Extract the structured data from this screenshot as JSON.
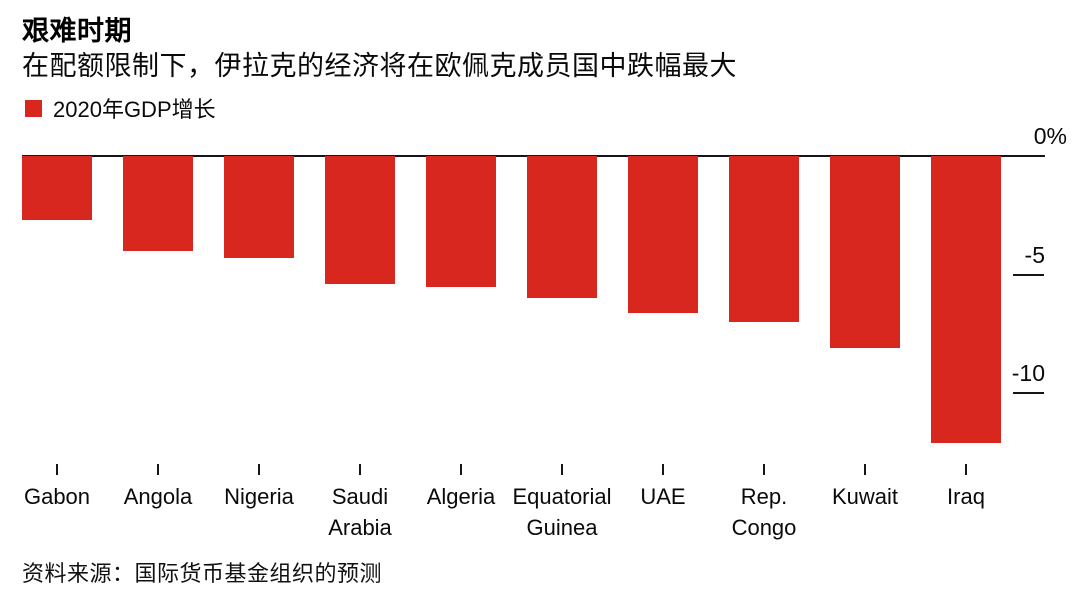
{
  "header": {
    "title": "艰难时期",
    "subtitle": "在配额限制下，伊拉克的经济将在欧佩克成员国中跌幅最大"
  },
  "legend": {
    "label": "2020年GDP增长",
    "color": "#d8271e"
  },
  "source": "资料来源：国际货币基金组织的预测",
  "chart_data": {
    "type": "bar",
    "title": "艰难时期",
    "subtitle": "在配额限制下，伊拉克的经济将在欧佩克成员国中跌幅最大",
    "series_name": "2020年GDP增长",
    "unit": "%",
    "categories": [
      "Gabon",
      "Angola",
      "Nigeria",
      "Saudi Arabia",
      "Algeria",
      "Equatorial Guinea",
      "UAE",
      "Rep. Congo",
      "Kuwait",
      "Iraq"
    ],
    "category_display": [
      "Gabon",
      "Angola",
      "Nigeria",
      "Saudi\nArabia",
      "Algeria",
      "Equatorial\nGuinea",
      "UAE",
      "Rep.\nCongo",
      "Kuwait",
      "Iraq"
    ],
    "values": [
      -2.7,
      -4.0,
      -4.3,
      -5.4,
      -5.5,
      -6.0,
      -6.6,
      -7.0,
      -8.1,
      -12.1
    ],
    "ylim": [
      -12.5,
      0
    ],
    "yticks": [
      {
        "label": "0%",
        "value": 0
      },
      {
        "label": "-5",
        "value": -5
      },
      {
        "label": "-10",
        "value": -10
      }
    ],
    "bar_color": "#d8271e",
    "orientation": "vertical",
    "grid": false,
    "legend_position": "top-left",
    "axis_side": "right"
  }
}
